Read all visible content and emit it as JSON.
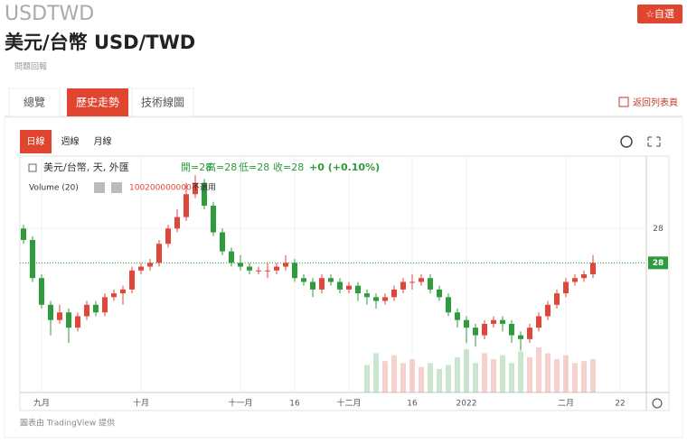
{
  "header": {
    "symbol": "USDTWD",
    "title": "美元/台幣 USD/TWD",
    "report": "問題回報",
    "watch_button": "☆自選"
  },
  "tabs": [
    "總覽",
    "歷史走勢",
    "技術線圖"
  ],
  "active_tab": 1,
  "back_link": "返回列表頁",
  "intervals": [
    "日線",
    "週線",
    "月線"
  ],
  "active_interval": 0,
  "chart_data": {
    "type": "candlestick",
    "legend": {
      "symbol": "美元/台幣, 天, 外匯",
      "ohlc": [
        "開=28",
        "高=28",
        "低=28",
        "收=28"
      ],
      "change": "+0 (+0.10%)",
      "volume_label": "Volume (20)",
      "volume_value": "100200000000",
      "volume_na": "不適用"
    },
    "up_color": "#e0463a",
    "down_color": "#2e9b3c",
    "grid": true,
    "xlim": [
      -0.4,
      68.9
    ],
    "xticks": [
      {
        "value": 2,
        "label": "九月"
      },
      {
        "value": 13,
        "label": "十月"
      },
      {
        "value": 24,
        "label": "十一月"
      },
      {
        "value": 30,
        "label": "16"
      },
      {
        "value": 36,
        "label": "十二月"
      },
      {
        "value": 43,
        "label": "16"
      },
      {
        "value": 49,
        "label": "2022"
      },
      {
        "value": 60,
        "label": "二月"
      },
      {
        "value": 66,
        "label": "22"
      }
    ],
    "ylim": [
      27.57,
      28.19
    ],
    "yticks": [
      28
    ],
    "last_price": {
      "value": 27.91,
      "label": "28"
    },
    "candles": [
      [
        28.0,
        28.01,
        27.96,
        27.97
      ],
      [
        27.97,
        27.98,
        27.86,
        27.87
      ],
      [
        27.87,
        27.88,
        27.79,
        27.8
      ],
      [
        27.8,
        27.81,
        27.72,
        27.76
      ],
      [
        27.76,
        27.8,
        27.75,
        27.78
      ],
      [
        27.78,
        27.79,
        27.7,
        27.74
      ],
      [
        27.74,
        27.78,
        27.73,
        27.77
      ],
      [
        27.77,
        27.81,
        27.76,
        27.8
      ],
      [
        27.8,
        27.81,
        27.77,
        27.78
      ],
      [
        27.78,
        27.83,
        27.77,
        27.82
      ],
      [
        27.82,
        27.84,
        27.81,
        27.83
      ],
      [
        27.83,
        27.85,
        27.8,
        27.84
      ],
      [
        27.84,
        27.9,
        27.83,
        27.89
      ],
      [
        27.89,
        27.91,
        27.88,
        27.9
      ],
      [
        27.9,
        27.92,
        27.89,
        27.91
      ],
      [
        27.91,
        27.97,
        27.9,
        27.96
      ],
      [
        27.96,
        28.01,
        27.95,
        28.0
      ],
      [
        28.0,
        28.05,
        27.99,
        28.03
      ],
      [
        28.03,
        28.12,
        28.02,
        28.09
      ],
      [
        28.09,
        28.14,
        28.08,
        28.12
      ],
      [
        28.12,
        28.13,
        28.05,
        28.06
      ],
      [
        28.06,
        28.07,
        27.98,
        27.99
      ],
      [
        27.99,
        28.0,
        27.93,
        27.94
      ],
      [
        27.94,
        27.95,
        27.9,
        27.91
      ],
      [
        27.91,
        27.93,
        27.89,
        27.9
      ],
      [
        27.9,
        27.91,
        27.88,
        27.89
      ],
      [
        27.89,
        27.9,
        27.88,
        27.89
      ],
      [
        27.89,
        27.91,
        27.87,
        27.89
      ],
      [
        27.89,
        27.91,
        27.88,
        27.9
      ],
      [
        27.9,
        27.93,
        27.89,
        27.91
      ],
      [
        27.91,
        27.92,
        27.86,
        27.87
      ],
      [
        27.87,
        27.88,
        27.85,
        27.86
      ],
      [
        27.86,
        27.87,
        27.82,
        27.84
      ],
      [
        27.84,
        27.88,
        27.83,
        27.87
      ],
      [
        27.87,
        27.88,
        27.85,
        27.86
      ],
      [
        27.86,
        27.87,
        27.83,
        27.84
      ],
      [
        27.84,
        27.86,
        27.83,
        27.85
      ],
      [
        27.85,
        27.86,
        27.81,
        27.83
      ],
      [
        27.83,
        27.84,
        27.8,
        27.82
      ],
      [
        27.82,
        27.83,
        27.79,
        27.81
      ],
      [
        27.81,
        27.83,
        27.8,
        27.82
      ],
      [
        27.82,
        27.85,
        27.81,
        27.84
      ],
      [
        27.84,
        27.87,
        27.83,
        27.86
      ],
      [
        27.86,
        27.88,
        27.84,
        27.86
      ],
      [
        27.86,
        27.88,
        27.85,
        27.87
      ],
      [
        27.87,
        27.88,
        27.83,
        27.84
      ],
      [
        27.84,
        27.85,
        27.81,
        27.82
      ],
      [
        27.82,
        27.83,
        27.77,
        27.78
      ],
      [
        27.78,
        27.79,
        27.74,
        27.76
      ],
      [
        27.76,
        27.77,
        27.7,
        27.74
      ],
      [
        27.74,
        27.75,
        27.69,
        27.72
      ],
      [
        27.72,
        27.76,
        27.71,
        27.75
      ],
      [
        27.75,
        27.77,
        27.74,
        27.76
      ],
      [
        27.76,
        27.77,
        27.73,
        27.75
      ],
      [
        27.75,
        27.76,
        27.7,
        27.72
      ],
      [
        27.72,
        27.73,
        27.68,
        27.71
      ],
      [
        27.71,
        27.75,
        27.7,
        27.74
      ],
      [
        27.74,
        27.78,
        27.73,
        27.77
      ],
      [
        27.77,
        27.81,
        27.76,
        27.8
      ],
      [
        27.8,
        27.84,
        27.79,
        27.83
      ],
      [
        27.83,
        27.87,
        27.82,
        27.86
      ],
      [
        27.86,
        27.88,
        27.85,
        27.87
      ],
      [
        27.87,
        27.89,
        27.86,
        27.88
      ],
      [
        27.88,
        27.93,
        27.87,
        27.91
      ]
    ],
    "volume": [
      null,
      null,
      null,
      null,
      null,
      null,
      null,
      null,
      null,
      null,
      null,
      null,
      null,
      null,
      null,
      null,
      null,
      null,
      null,
      null,
      null,
      null,
      null,
      null,
      null,
      null,
      null,
      null,
      null,
      null,
      null,
      null,
      null,
      null,
      null,
      null,
      null,
      null,
      28,
      40,
      32,
      38,
      30,
      34,
      26,
      30,
      24,
      28,
      36,
      44,
      30,
      40,
      34,
      38,
      30,
      42,
      36,
      46,
      40,
      34,
      38,
      30,
      32,
      34
    ]
  },
  "footer": "圖表由 TradingView 提供"
}
